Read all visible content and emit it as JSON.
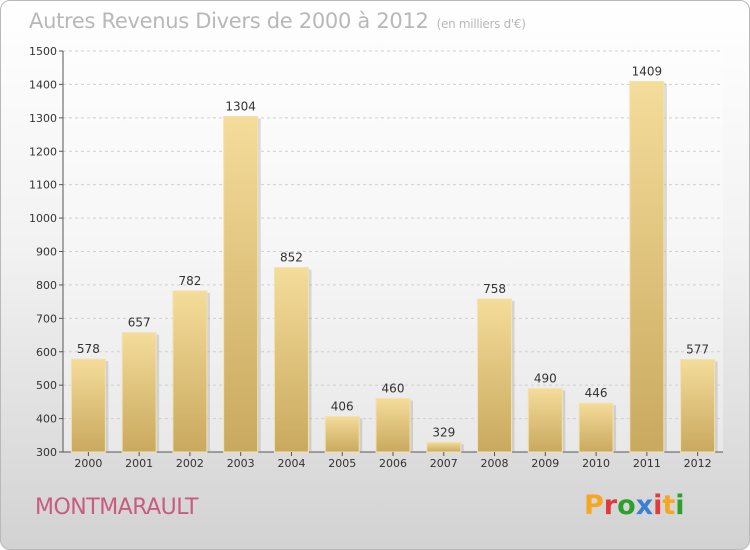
{
  "chart_data": {
    "type": "bar",
    "title": "Autres Revenus Divers de 2000 à 2012",
    "subtitle": "(en milliers d'€)",
    "categories": [
      "2000",
      "2001",
      "2002",
      "2003",
      "2004",
      "2005",
      "2006",
      "2007",
      "2008",
      "2009",
      "2010",
      "2011",
      "2012"
    ],
    "values": [
      578,
      657,
      782,
      1304,
      852,
      406,
      460,
      329,
      758,
      490,
      446,
      1409,
      577
    ],
    "ylim": [
      300,
      1500
    ],
    "yticks": [
      300,
      400,
      500,
      600,
      700,
      800,
      900,
      1000,
      1100,
      1200,
      1300,
      1400,
      1500
    ],
    "grid": true,
    "bar_color": "#e8cc8a"
  },
  "footer": {
    "location": "MONTMARAULT",
    "logo_text": "Proxiti",
    "logo_colors": [
      "#f5a623",
      "#e03a3a",
      "#2ca02c",
      "#3a7fd5",
      "#e03a3a",
      "#f5a623",
      "#2ca02c"
    ]
  }
}
